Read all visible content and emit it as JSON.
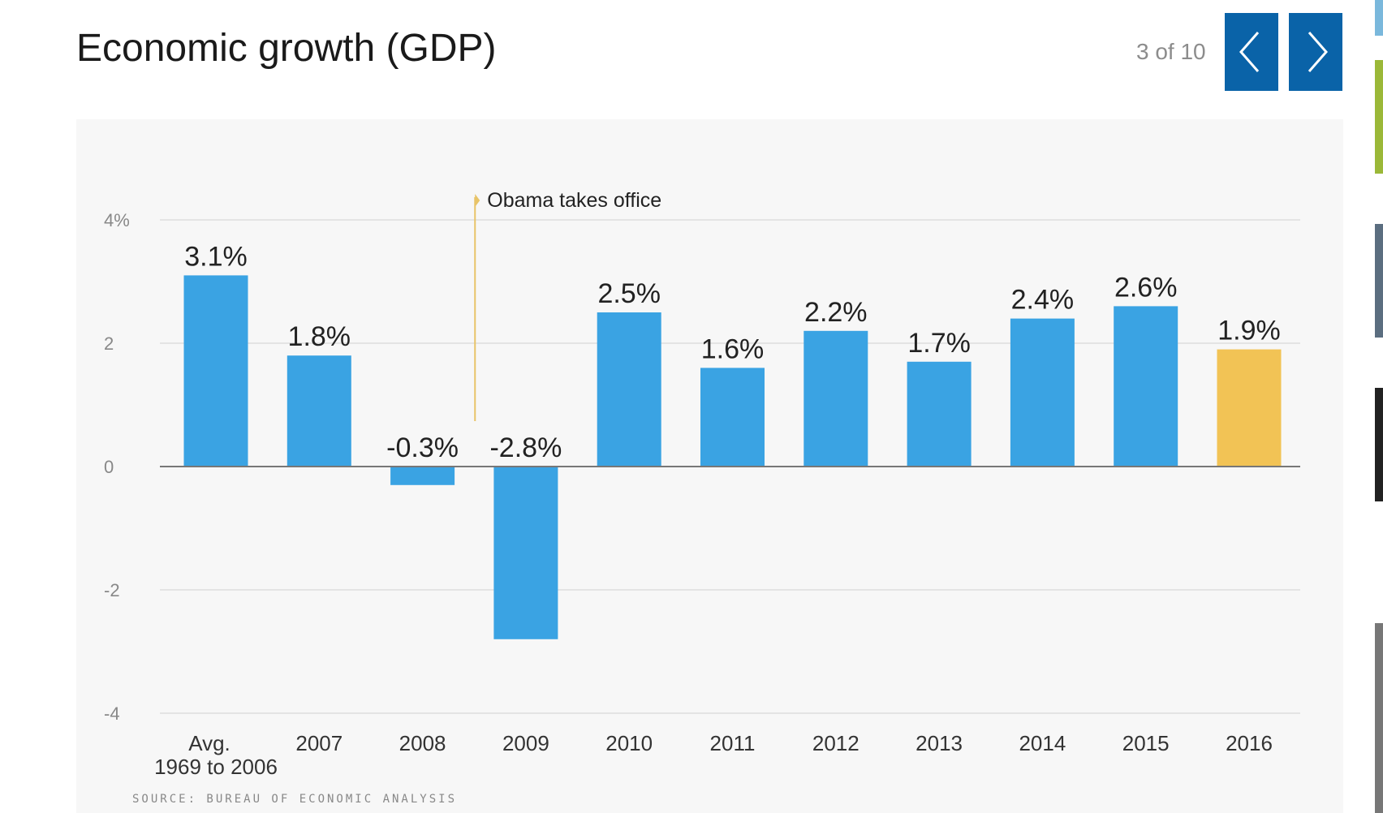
{
  "header": {
    "title": "Economic growth (GDP)",
    "counter": "3 of 10",
    "prev_label": "Previous",
    "next_label": "Next"
  },
  "chart_data": {
    "type": "bar",
    "title": "Economic growth (GDP)",
    "categories": [
      [
        "Avg.",
        "1969 to 2006"
      ],
      [
        "2007"
      ],
      [
        "2008"
      ],
      [
        "2009"
      ],
      [
        "2010"
      ],
      [
        "2011"
      ],
      [
        "2012"
      ],
      [
        "2013"
      ],
      [
        "2014"
      ],
      [
        "2015"
      ],
      [
        "2016"
      ]
    ],
    "values": [
      3.1,
      1.8,
      -0.3,
      -2.8,
      2.5,
      1.6,
      2.2,
      1.7,
      2.4,
      2.6,
      1.9
    ],
    "labels": [
      "3.1%",
      "1.8%",
      "-0.3%",
      "-2.8%",
      "2.5%",
      "1.6%",
      "2.2%",
      "1.7%",
      "2.4%",
      "2.6%",
      "1.9%"
    ],
    "highlight_index": 10,
    "colors": {
      "bar": "#3aa3e3",
      "highlight": "#f2c355",
      "annotation": "#e8c468"
    },
    "yticks": [
      {
        "v": 4,
        "label": "4%"
      },
      {
        "v": 2,
        "label": "2"
      },
      {
        "v": 0,
        "label": "0"
      },
      {
        "v": -2,
        "label": "-2"
      },
      {
        "v": -4,
        "label": "-4"
      }
    ],
    "ylim": [
      -4,
      4
    ],
    "annotation": {
      "text": "Obama takes office",
      "position_between": [
        3,
        3
      ]
    },
    "source": "SOURCE: BUREAU OF ECONOMIC ANALYSIS",
    "xlabel": "",
    "ylabel": "",
    "grid": true
  }
}
